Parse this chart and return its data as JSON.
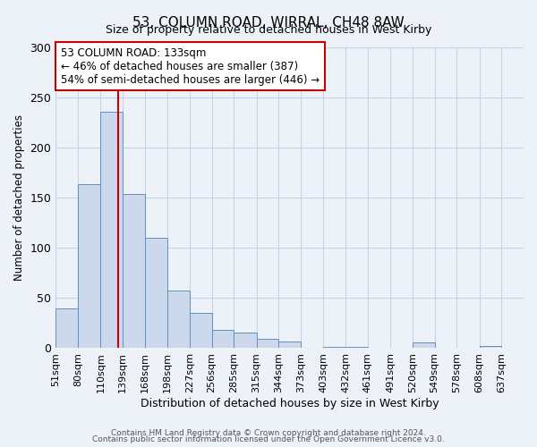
{
  "title": "53, COLUMN ROAD, WIRRAL, CH48 8AW",
  "subtitle": "Size of property relative to detached houses in West Kirby",
  "xlabel": "Distribution of detached houses by size in West Kirby",
  "ylabel": "Number of detached properties",
  "bin_labels": [
    "51sqm",
    "80sqm",
    "110sqm",
    "139sqm",
    "168sqm",
    "198sqm",
    "227sqm",
    "256sqm",
    "285sqm",
    "315sqm",
    "344sqm",
    "373sqm",
    "403sqm",
    "432sqm",
    "461sqm",
    "491sqm",
    "520sqm",
    "549sqm",
    "578sqm",
    "608sqm",
    "637sqm"
  ],
  "bar_values": [
    39,
    163,
    235,
    153,
    110,
    57,
    35,
    18,
    15,
    9,
    6,
    0,
    1,
    1,
    0,
    0,
    5,
    0,
    0,
    2,
    0
  ],
  "bar_color": "#ccd9ed",
  "bar_edge_color": "#6090c0",
  "ylim": [
    0,
    300
  ],
  "yticks": [
    0,
    50,
    100,
    150,
    200,
    250,
    300
  ],
  "property_line_x": 133,
  "property_line_color": "#cc0000",
  "annotation_title": "53 COLUMN ROAD: 133sqm",
  "annotation_line1": "← 46% of detached houses are smaller (387)",
  "annotation_line2": "54% of semi-detached houses are larger (446) →",
  "annotation_box_color": "#ffffff",
  "annotation_box_edge": "#cc0000",
  "footer1": "Contains HM Land Registry data © Crown copyright and database right 2024.",
  "footer2": "Contains public sector information licensed under the Open Government Licence v3.0.",
  "background_color": "#edf2f9",
  "bin_edges": [
    51,
    80,
    110,
    139,
    168,
    198,
    227,
    256,
    285,
    315,
    344,
    373,
    403,
    432,
    461,
    491,
    520,
    549,
    578,
    608,
    637,
    666
  ]
}
